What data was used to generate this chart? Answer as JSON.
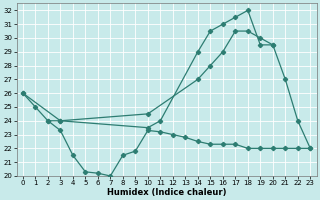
{
  "xlabel": "Humidex (Indice chaleur)",
  "line_color": "#2d7d72",
  "bg_color": "#c8eaea",
  "grid_color": "#b0d4d4",
  "ylim": [
    20,
    32.5
  ],
  "xlim": [
    -0.5,
    23.5
  ],
  "yticks": [
    20,
    21,
    22,
    23,
    24,
    25,
    26,
    27,
    28,
    29,
    30,
    31,
    32
  ],
  "xticks": [
    0,
    1,
    2,
    3,
    4,
    5,
    6,
    7,
    8,
    9,
    10,
    11,
    12,
    13,
    14,
    15,
    16,
    17,
    18,
    19,
    20,
    21,
    22,
    23
  ],
  "line_arc": {
    "x": [
      0,
      1,
      2,
      3,
      10,
      11,
      14,
      15,
      16,
      17,
      18,
      19,
      20,
      21,
      22,
      23
    ],
    "y": [
      26,
      25,
      24,
      24,
      23.5,
      24,
      29,
      30.5,
      31,
      31.5,
      32,
      29.5,
      29.5,
      27,
      24,
      22
    ]
  },
  "line_dip": {
    "x": [
      2,
      3,
      4,
      5,
      6,
      7,
      8,
      9,
      10,
      11,
      12,
      13,
      14,
      15,
      16,
      17,
      18,
      19,
      20,
      21,
      22,
      23
    ],
    "y": [
      24,
      23.3,
      21.5,
      20.3,
      20.2,
      20,
      21.5,
      21.8,
      23.3,
      23.2,
      23.0,
      22.8,
      22.5,
      22.3,
      22.3,
      22.3,
      22.0,
      22.0,
      22.0,
      22.0,
      22.0,
      22.0
    ]
  },
  "line_diag": {
    "x": [
      0,
      3,
      10,
      14,
      15,
      16,
      17,
      18,
      19,
      20
    ],
    "y": [
      26,
      24,
      24.5,
      27,
      28,
      29,
      30.5,
      30.5,
      30,
      29.5
    ]
  }
}
